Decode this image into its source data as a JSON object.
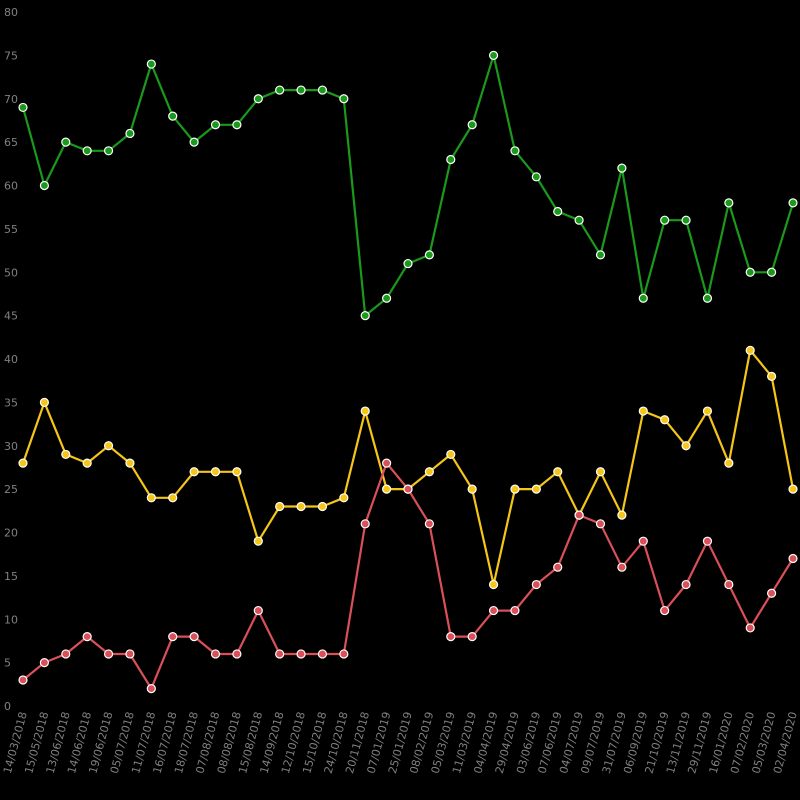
{
  "chart_data": {
    "type": "line",
    "title": "",
    "xlabel": "",
    "ylabel": "",
    "ylim": [
      0,
      80
    ],
    "yticks": [
      0,
      5,
      10,
      15,
      20,
      25,
      30,
      35,
      40,
      45,
      50,
      55,
      60,
      65,
      70,
      75,
      80
    ],
    "grid": false,
    "legend": "none",
    "background": "#000000",
    "x": [
      "14/03/2018",
      "15/05/2018",
      "13/06/2018",
      "14/06/2018",
      "19/06/2018",
      "05/07/2018",
      "11/07/2018",
      "16/07/2018",
      "18/07/2018",
      "07/08/2018",
      "08/08/2018",
      "15/08/2018",
      "14/09/2018",
      "12/10/2018",
      "15/10/2018",
      "24/10/2018",
      "20/11/2018",
      "07/01/2019",
      "25/01/2019",
      "08/02/2019",
      "05/03/2019",
      "11/03/2019",
      "04/04/2019",
      "29/04/2019",
      "03/06/2019",
      "07/06/2019",
      "04/07/2019",
      "09/07/2019",
      "31/07/2019",
      "06/09/2019",
      "21/10/2019",
      "13/11/2019",
      "29/11/2019",
      "16/01/2020",
      "07/02/2020",
      "05/03/2020",
      "02/04/2020"
    ],
    "series": [
      {
        "color": "#1a9a1a",
        "values": [
          69,
          60,
          65,
          64,
          64,
          66,
          74,
          68,
          65,
          67,
          67,
          70,
          71,
          71,
          71,
          70,
          45,
          47,
          51,
          52,
          63,
          67,
          75,
          64,
          61,
          57,
          56,
          52,
          62,
          47,
          56,
          56,
          47,
          58,
          50,
          50,
          58
        ]
      },
      {
        "color": "#f5c518",
        "values": [
          28,
          35,
          29,
          28,
          30,
          28,
          24,
          24,
          27,
          27,
          27,
          19,
          23,
          23,
          23,
          24,
          34,
          25,
          25,
          27,
          29,
          25,
          14,
          25,
          25,
          27,
          22,
          27,
          22,
          34,
          33,
          30,
          34,
          28,
          41,
          38,
          25
        ]
      },
      {
        "color": "#d95058",
        "values": [
          3,
          5,
          6,
          8,
          6,
          6,
          2,
          8,
          8,
          6,
          6,
          11,
          6,
          6,
          6,
          6,
          21,
          28,
          25,
          21,
          8,
          8,
          11,
          11,
          14,
          16,
          22,
          21,
          16,
          19,
          11,
          14,
          19,
          14,
          9,
          13,
          17
        ]
      }
    ]
  }
}
